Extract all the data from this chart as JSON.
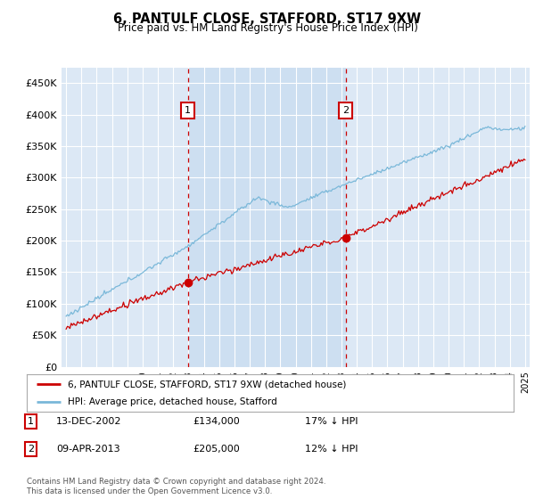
{
  "title": "6, PANTULF CLOSE, STAFFORD, ST17 9XW",
  "subtitle": "Price paid vs. HM Land Registry's House Price Index (HPI)",
  "background_color": "#ffffff",
  "plot_bg_color": "#dce8f5",
  "shade_color": "#c8dcf0",
  "grid_color": "#ffffff",
  "ylim": [
    0,
    475000
  ],
  "yticks": [
    0,
    50000,
    100000,
    150000,
    200000,
    250000,
    300000,
    350000,
    400000,
    450000
  ],
  "ytick_labels": [
    "£0",
    "£50K",
    "£100K",
    "£150K",
    "£200K",
    "£250K",
    "£300K",
    "£350K",
    "£400K",
    "£450K"
  ],
  "year_start": 1995,
  "year_end": 2025,
  "sale1_date_num": 2002.95,
  "sale1_price": 134000,
  "sale2_date_num": 2013.27,
  "sale2_price": 205000,
  "hpi_line_color": "#7ab8d9",
  "price_line_color": "#cc0000",
  "vline_color": "#cc0000",
  "dot_color": "#cc0000",
  "legend_label_red": "6, PANTULF CLOSE, STAFFORD, ST17 9XW (detached house)",
  "legend_label_blue": "HPI: Average price, detached house, Stafford",
  "table_rows": [
    {
      "num": "1",
      "date": "13-DEC-2002",
      "price": "£134,000",
      "hpi": "17% ↓ HPI"
    },
    {
      "num": "2",
      "date": "09-APR-2013",
      "price": "£205,000",
      "hpi": "12% ↓ HPI"
    }
  ],
  "footer": "Contains HM Land Registry data © Crown copyright and database right 2024.\nThis data is licensed under the Open Government Licence v3.0."
}
